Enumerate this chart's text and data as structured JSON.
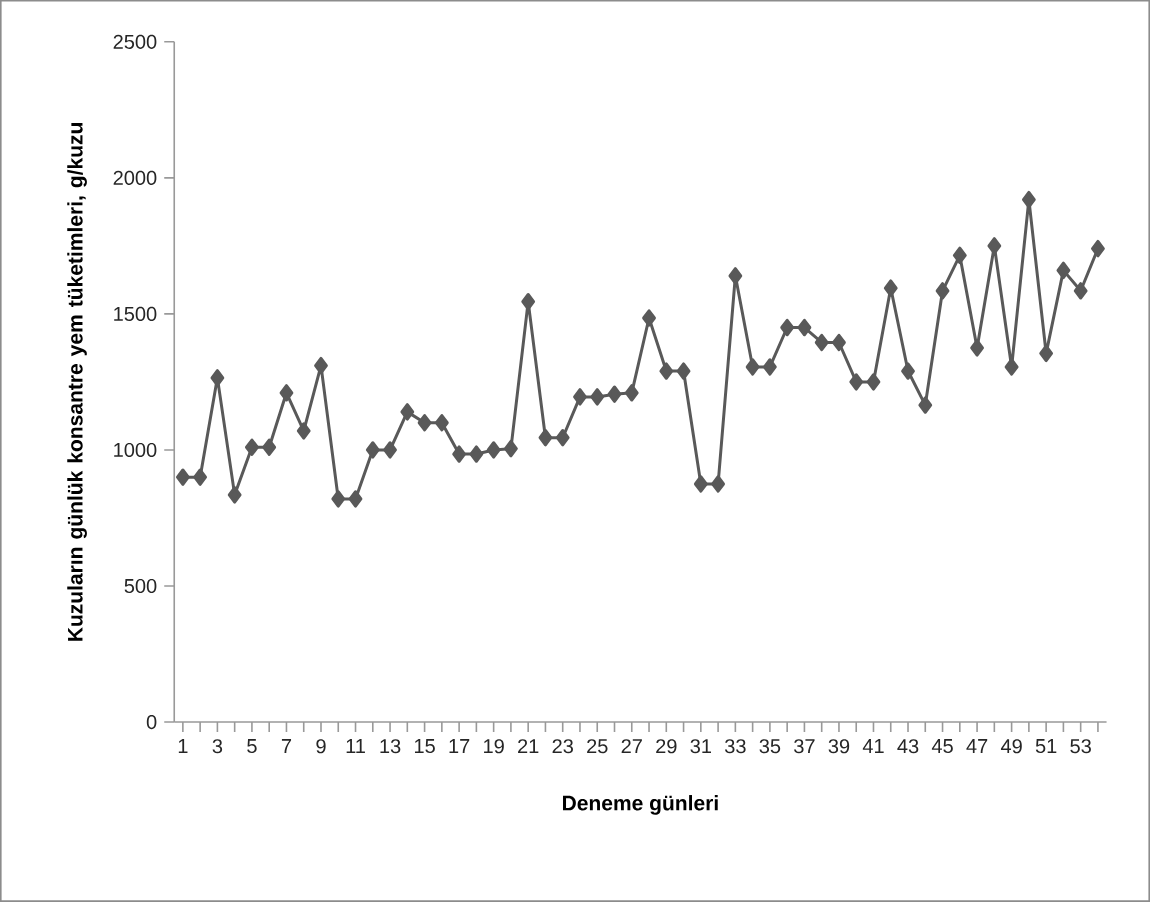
{
  "chart_data": {
    "type": "line",
    "xlabel": "Deneme günleri",
    "ylabel": "Kuzuların günlük konsantre yem tüketimleri, g/kuzu",
    "categories": [
      "1",
      null,
      "3",
      null,
      "5",
      null,
      "7",
      null,
      "9",
      null,
      "11",
      null,
      "13",
      null,
      "15",
      null,
      "17",
      null,
      "19",
      null,
      "21",
      null,
      "23",
      null,
      "25",
      null,
      "27",
      null,
      "29",
      null,
      "31",
      null,
      "33",
      null,
      "35",
      null,
      "37",
      null,
      "39",
      null,
      "41",
      null,
      "43",
      null,
      "45",
      null,
      "47",
      null,
      "49",
      null,
      "51",
      null,
      "53",
      null
    ],
    "series": [
      {
        "color": "#595959",
        "values": [
          900,
          900,
          1265,
          835,
          1010,
          1010,
          1210,
          1070,
          1310,
          820,
          820,
          1000,
          1000,
          1140,
          1100,
          1100,
          985,
          985,
          1000,
          1005,
          1545,
          1045,
          1045,
          1195,
          1195,
          1205,
          1210,
          1485,
          1290,
          1290,
          875,
          875,
          1640,
          1305,
          1305,
          1450,
          1450,
          1395,
          1395,
          1250,
          1250,
          1595,
          1290,
          1165,
          1585,
          1715,
          1375,
          1750,
          1305,
          1920,
          1355,
          1660,
          1585,
          1740
        ]
      }
    ],
    "ylim": [
      0,
      2500
    ],
    "yticks": [
      0,
      500,
      1000,
      1500,
      2000,
      2500
    ],
    "marker": "diamond",
    "line_style": "solid"
  }
}
